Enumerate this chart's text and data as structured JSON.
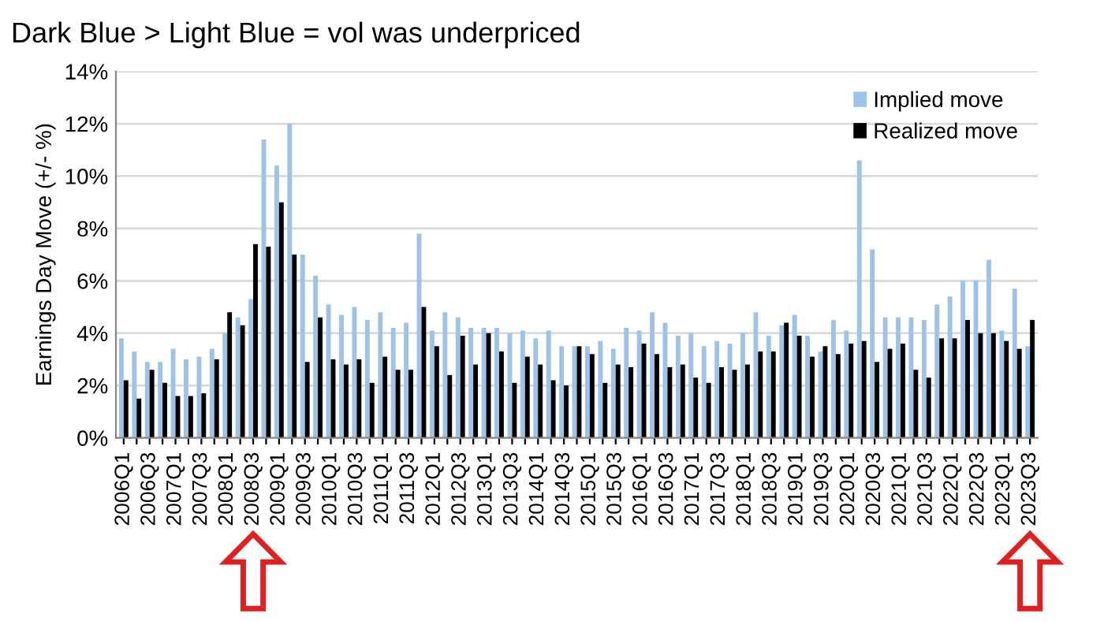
{
  "chart_data": {
    "type": "bar",
    "title": "Dark Blue > Light Blue = vol was underpriced",
    "ylabel": "Earnings Day Move (+/- %)",
    "categories": [
      "2006Q1",
      null,
      "2006Q3",
      null,
      "2007Q1",
      null,
      "2007Q3",
      null,
      "2008Q1",
      null,
      "2008Q3",
      null,
      "2009Q1",
      null,
      "2009Q3",
      null,
      "2010Q1",
      null,
      "2010Q3",
      null,
      "2011Q1",
      null,
      "2011Q3",
      null,
      "2012Q1",
      null,
      "2012Q3",
      null,
      "2013Q1",
      null,
      "2013Q3",
      null,
      "2014Q1",
      null,
      "2014Q3",
      null,
      "2015Q1",
      null,
      "2015Q3",
      null,
      "2016Q1",
      null,
      "2016Q3",
      null,
      "2017Q1",
      null,
      "2017Q3",
      null,
      "2018Q1",
      null,
      "2018Q3",
      null,
      "2019Q1",
      null,
      "2019Q3",
      null,
      "2020Q1",
      null,
      "2020Q3",
      null,
      "2021Q1",
      null,
      "2021Q3",
      null,
      "2022Q1",
      null,
      "2022Q3",
      null,
      "2023Q1",
      null,
      "2023Q3"
    ],
    "series": [
      {
        "name": "Implied move",
        "color": "#9dc3e6",
        "values": [
          3.8,
          3.3,
          2.9,
          2.9,
          3.4,
          3.0,
          3.1,
          3.4,
          4.0,
          4.6,
          5.3,
          11.4,
          10.4,
          12.0,
          7.0,
          6.2,
          5.1,
          4.7,
          5.0,
          4.5,
          4.8,
          4.2,
          4.4,
          7.8,
          4.1,
          4.8,
          4.6,
          4.2,
          4.2,
          4.2,
          4.0,
          4.1,
          3.8,
          4.1,
          3.5,
          3.5,
          3.5,
          3.7,
          3.4,
          4.2,
          4.1,
          4.8,
          4.4,
          3.9,
          4.0,
          3.5,
          3.7,
          3.6,
          4.0,
          4.8,
          3.9,
          4.3,
          4.7,
          3.9,
          3.3,
          4.5,
          4.1,
          10.6,
          7.2,
          4.6,
          4.6,
          4.6,
          4.5,
          5.1,
          5.4,
          6.0,
          6.0,
          6.8,
          4.1,
          5.7,
          3.5
        ]
      },
      {
        "name": "Realized move",
        "color": "#000000",
        "values": [
          2.2,
          1.5,
          2.6,
          2.1,
          1.6,
          1.6,
          1.7,
          3.0,
          4.8,
          4.3,
          7.4,
          7.3,
          9.0,
          7.0,
          2.9,
          4.6,
          3.0,
          2.8,
          3.0,
          2.1,
          3.1,
          2.6,
          2.6,
          5.0,
          3.5,
          2.4,
          3.9,
          2.8,
          4.0,
          3.3,
          2.1,
          3.1,
          2.8,
          2.2,
          2.0,
          3.5,
          3.2,
          2.1,
          2.8,
          2.7,
          3.6,
          3.2,
          2.7,
          2.8,
          2.3,
          2.1,
          2.7,
          2.6,
          2.8,
          3.3,
          3.3,
          4.4,
          3.9,
          3.1,
          3.5,
          3.2,
          3.6,
          3.7,
          2.9,
          3.4,
          3.6,
          2.6,
          2.3,
          3.8,
          3.8,
          4.5,
          4.0,
          4.0,
          3.7,
          3.4,
          4.5
        ]
      }
    ],
    "ylim": [
      0,
      14
    ],
    "yticks": [
      {
        "value": 0,
        "label": "0%"
      },
      {
        "value": 2,
        "label": "2%"
      },
      {
        "value": 4,
        "label": "4%"
      },
      {
        "value": 6,
        "label": "6%"
      },
      {
        "value": 8,
        "label": "8%"
      },
      {
        "value": 10,
        "label": "10%"
      },
      {
        "value": 12,
        "label": "12%"
      },
      {
        "value": 14,
        "label": "14%"
      }
    ],
    "grid": "y",
    "legend": "top right"
  }
}
